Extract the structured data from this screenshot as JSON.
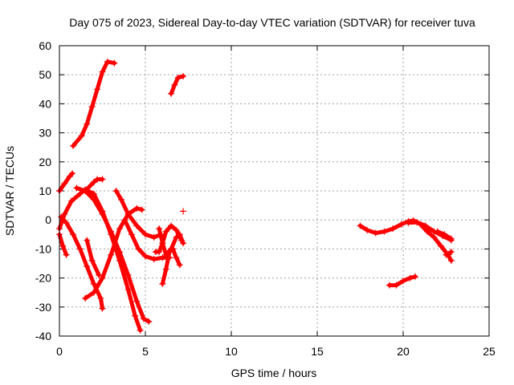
{
  "chart_data": {
    "type": "scatter",
    "title": "Day 075 of 2023, Sidereal Day-to-day VTEC variation (SDTVAR) for receiver tuva",
    "xlabel": "GPS time / hours",
    "ylabel": "SDTVAR / TECUs",
    "xlim": [
      0,
      25
    ],
    "ylim": [
      -40,
      60
    ],
    "x_ticks": [
      0,
      5,
      10,
      15,
      20,
      25
    ],
    "y_ticks": [
      -40,
      -30,
      -20,
      -10,
      0,
      10,
      20,
      30,
      40,
      50,
      60
    ],
    "grid": true,
    "legend": "none",
    "marker": "+",
    "color": "#ff0000",
    "series": [
      {
        "name": "track-01",
        "points": [
          [
            0.8,
            25.5
          ],
          [
            1.3,
            29
          ],
          [
            1.6,
            33
          ],
          [
            1.9,
            39
          ],
          [
            2.2,
            45
          ],
          [
            2.5,
            51
          ],
          [
            2.8,
            54.5
          ],
          [
            3.2,
            54
          ]
        ]
      },
      {
        "name": "track-02",
        "points": [
          [
            6.5,
            43.5
          ],
          [
            6.7,
            46.5
          ],
          [
            6.9,
            49
          ],
          [
            7.2,
            49.5
          ]
        ]
      },
      {
        "name": "track-03",
        "points": [
          [
            0.0,
            10
          ],
          [
            0.3,
            12.5
          ],
          [
            0.6,
            15
          ],
          [
            0.75,
            16
          ]
        ]
      },
      {
        "name": "track-04",
        "points": [
          [
            0.0,
            -3
          ],
          [
            0.3,
            2
          ],
          [
            0.7,
            6.5
          ],
          [
            1.2,
            9
          ],
          [
            1.5,
            10.5
          ],
          [
            2.0,
            9
          ],
          [
            2.5,
            3
          ],
          [
            3.0,
            -5
          ],
          [
            3.5,
            -14
          ],
          [
            4.0,
            -24
          ],
          [
            4.4,
            -33
          ],
          [
            4.7,
            -38
          ]
        ]
      },
      {
        "name": "track-05",
        "points": [
          [
            0.1,
            1
          ],
          [
            0.4,
            -1
          ],
          [
            0.8,
            -5
          ],
          [
            1.2,
            -10
          ],
          [
            1.6,
            -16
          ],
          [
            2.0,
            -22
          ],
          [
            2.4,
            -27
          ],
          [
            2.5,
            -30.5
          ]
        ]
      },
      {
        "name": "track-06",
        "points": [
          [
            0.0,
            -5
          ],
          [
            0.2,
            -9
          ],
          [
            0.4,
            -12
          ]
        ]
      },
      {
        "name": "track-07",
        "points": [
          [
            1.6,
            -7
          ],
          [
            1.9,
            -14
          ],
          [
            2.3,
            -19
          ]
        ]
      },
      {
        "name": "track-08",
        "points": [
          [
            1.0,
            11
          ],
          [
            1.5,
            10
          ],
          [
            2.0,
            7
          ],
          [
            2.5,
            2
          ],
          [
            3.0,
            -4
          ],
          [
            3.5,
            -11
          ],
          [
            4.0,
            -19
          ],
          [
            4.5,
            -28
          ],
          [
            4.9,
            -34
          ],
          [
            5.2,
            -35
          ]
        ]
      },
      {
        "name": "track-09",
        "points": [
          [
            1.5,
            -27
          ],
          [
            2.0,
            -25
          ],
          [
            2.5,
            -20
          ],
          [
            3.0,
            -12
          ],
          [
            3.5,
            -3
          ],
          [
            4.0,
            2
          ],
          [
            4.5,
            4
          ],
          [
            4.8,
            3.5
          ]
        ]
      },
      {
        "name": "track-10",
        "points": [
          [
            1.5,
            10
          ],
          [
            2.0,
            13
          ],
          [
            2.2,
            14
          ],
          [
            2.5,
            14
          ]
        ]
      },
      {
        "name": "track-11",
        "points": [
          [
            3.3,
            10
          ],
          [
            3.6,
            7
          ],
          [
            4.0,
            2
          ],
          [
            4.5,
            -2
          ],
          [
            5.0,
            -5
          ],
          [
            5.5,
            -6
          ],
          [
            5.9,
            -5
          ]
        ]
      },
      {
        "name": "track-12",
        "points": [
          [
            3.8,
            0
          ],
          [
            4.2,
            -5
          ],
          [
            4.6,
            -10
          ],
          [
            5.0,
            -12.5
          ],
          [
            5.5,
            -13.5
          ],
          [
            6.0,
            -13
          ],
          [
            6.4,
            -13
          ]
        ]
      },
      {
        "name": "track-13",
        "points": [
          [
            5.8,
            -3
          ],
          [
            6.0,
            -8
          ],
          [
            6.2,
            -12
          ],
          [
            6.5,
            -10
          ],
          [
            6.8,
            -6
          ],
          [
            7.0,
            -5
          ],
          [
            7.2,
            -8
          ]
        ]
      },
      {
        "name": "track-14",
        "points": [
          [
            5.6,
            -11
          ],
          [
            5.8,
            -11
          ],
          [
            6.0,
            -8
          ],
          [
            6.2,
            -4
          ],
          [
            6.5,
            -2
          ],
          [
            6.8,
            -3.5
          ],
          [
            7.1,
            -7
          ]
        ]
      },
      {
        "name": "track-15",
        "points": [
          [
            6.0,
            -22
          ],
          [
            6.2,
            -17
          ],
          [
            6.4,
            -11
          ]
        ]
      },
      {
        "name": "track-16",
        "points": [
          [
            6.6,
            -10
          ],
          [
            6.8,
            -13
          ],
          [
            7.0,
            -15.5
          ]
        ]
      },
      {
        "name": "track-17",
        "points": [
          [
            7.2,
            3
          ]
        ]
      },
      {
        "name": "track-18",
        "points": [
          [
            17.5,
            -2
          ],
          [
            17.9,
            -3.5
          ],
          [
            18.4,
            -4.5
          ],
          [
            18.9,
            -4
          ],
          [
            19.4,
            -3
          ],
          [
            19.9,
            -1.5
          ],
          [
            20.3,
            -0.5
          ],
          [
            20.6,
            -0.2
          ],
          [
            21.0,
            -1.5
          ],
          [
            21.4,
            -4
          ],
          [
            21.8,
            -6
          ],
          [
            22.2,
            -9
          ],
          [
            22.6,
            -12
          ],
          [
            22.8,
            -14
          ]
        ]
      },
      {
        "name": "track-19",
        "points": [
          [
            20.3,
            -1
          ],
          [
            20.8,
            -0.8
          ],
          [
            21.3,
            -2
          ],
          [
            21.8,
            -4
          ],
          [
            22.3,
            -5.5
          ],
          [
            22.8,
            -7
          ]
        ]
      },
      {
        "name": "track-20",
        "points": [
          [
            22.0,
            -4
          ],
          [
            22.4,
            -5
          ],
          [
            22.8,
            -6.5
          ]
        ]
      },
      {
        "name": "track-21",
        "points": [
          [
            22.5,
            -12
          ],
          [
            22.8,
            -11
          ]
        ]
      },
      {
        "name": "track-22",
        "points": [
          [
            19.2,
            -22.5
          ],
          [
            19.6,
            -22.5
          ],
          [
            20.0,
            -21
          ],
          [
            20.4,
            -20
          ],
          [
            20.7,
            -19.5
          ]
        ]
      }
    ]
  }
}
